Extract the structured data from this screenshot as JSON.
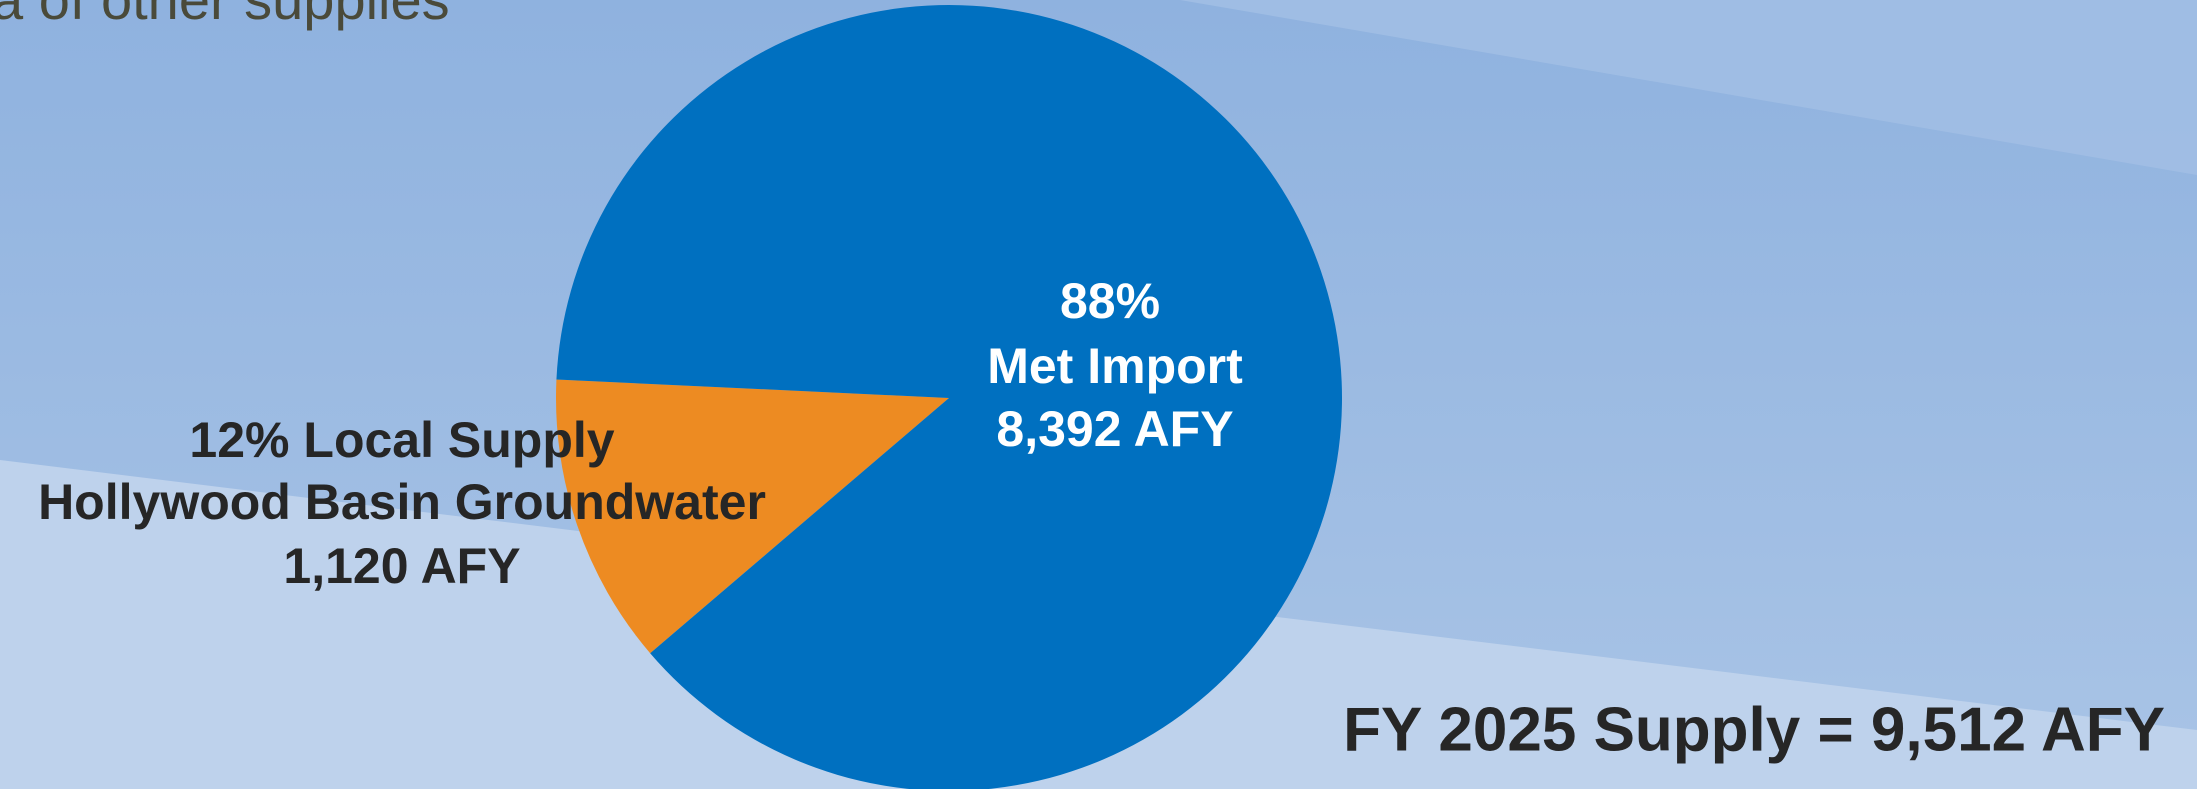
{
  "header_text": "a of other supplies",
  "chart_data": {
    "type": "pie",
    "categories": [
      "Local Supply",
      "Met Import"
    ],
    "values": [
      12,
      88
    ],
    "value_labels": [
      "12%",
      "88%"
    ],
    "sources": [
      "Hollywood Basin Groundwater",
      null
    ],
    "amount_labels": [
      "1,120 AFY",
      "8,392 AFY"
    ],
    "colors": [
      "#ed8b22",
      "#0070c0"
    ],
    "total_label": "FY 2025 Supply = 9,512 AFY"
  }
}
